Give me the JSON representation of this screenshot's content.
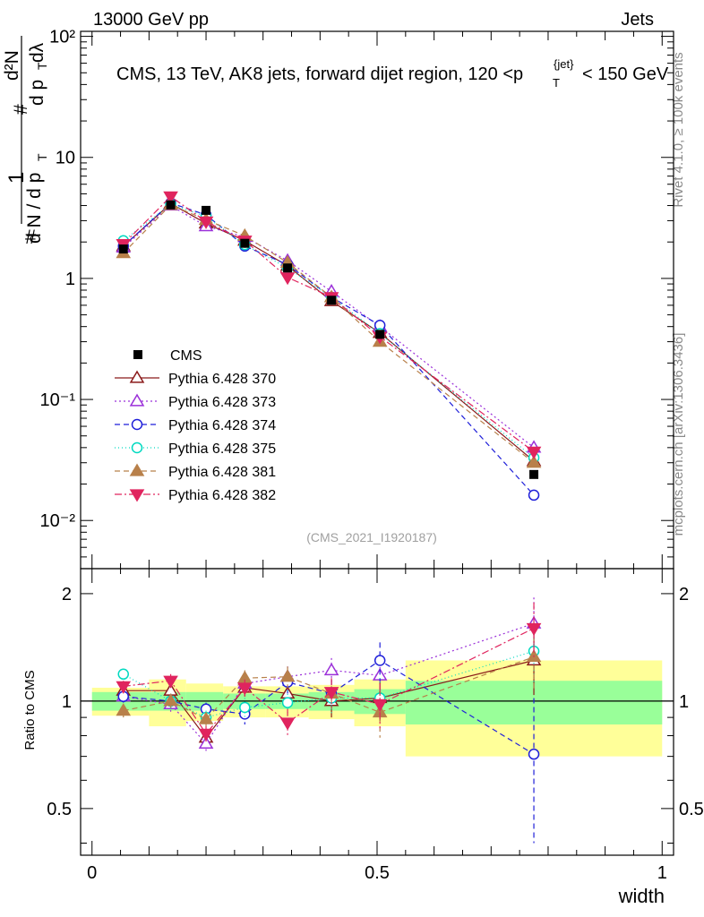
{
  "header": {
    "left": "13000 GeV pp",
    "right": "Jets"
  },
  "side_labels": {
    "rivet": "Rivet 4.1.0, ≥ 100k events",
    "mcplots": "mcplots.cern.ch [arXiv:1306.3436]"
  },
  "chart_data": {
    "type": "line",
    "title": "CMS, 13 TeV, AK8 jets, forward dijet region, 120 <p_T^{jet}< 150 GeV",
    "ylabel_main": "1/(dN/dp_T) d²N/(dp_T dλ)",
    "ylabel_ratio": "Ratio to CMS",
    "xlabel": "width",
    "analysis_id": "(CMS_2021_I1920187)",
    "xlim": [
      -0.02,
      1.02
    ],
    "ylim_main": [
      0.004,
      110
    ],
    "ylim_ratio": [
      0.37,
      2.35
    ],
    "x_ticks": [
      "0",
      "0.5",
      "1"
    ],
    "y_ticks_main": [
      "10⁻²",
      "10⁻¹",
      "1",
      "10",
      "10²"
    ],
    "y_ticks_ratio": [
      "0.5",
      "1",
      "2"
    ],
    "x": [
      0.055,
      0.138,
      0.2,
      0.268,
      0.343,
      0.42,
      0.505,
      0.775
    ],
    "bin_edges": [
      0.0,
      0.1,
      0.165,
      0.23,
      0.305,
      0.38,
      0.46,
      0.55,
      1.0
    ],
    "data": {
      "name": "CMS",
      "values": [
        1.75,
        4.05,
        3.65,
        1.95,
        1.22,
        0.66,
        0.345,
        0.024
      ],
      "band_inner": [
        0.06,
        0.06,
        0.06,
        0.05,
        0.05,
        0.06,
        0.08,
        0.14
      ],
      "band_outer": [
        0.09,
        0.15,
        0.12,
        0.1,
        0.1,
        0.11,
        0.15,
        0.3
      ]
    },
    "series": [
      {
        "name": "Pythia 6.428 370",
        "color": "#8b1a1a",
        "dash": "",
        "marker": "triangle-up-open",
        "values": [
          1.85,
          4.15,
          2.85,
          2.05,
          1.27,
          0.65,
          0.355,
          0.031
        ],
        "ratio": [
          1.07,
          1.07,
          0.79,
          1.09,
          1.05,
          1.0,
          1.02,
          1.3
        ],
        "ratio_err": [
          0.04,
          0.05,
          0.04,
          0.06,
          0.08,
          0.1,
          0.14,
          0.26
        ]
      },
      {
        "name": "Pythia 6.428 373",
        "color": "#9b30d9",
        "dash": "2,3",
        "marker": "triangle-up-open",
        "values": [
          1.8,
          4.0,
          2.7,
          2.2,
          1.4,
          0.78,
          0.4,
          0.04
        ],
        "ratio": [
          1.03,
          0.98,
          0.76,
          1.12,
          1.17,
          1.22,
          1.18,
          1.65
        ],
        "ratio_err": [
          0.04,
          0.05,
          0.04,
          0.06,
          0.08,
          0.1,
          0.14,
          0.3
        ]
      },
      {
        "name": "Pythia 6.428 374",
        "color": "#1f1fd9",
        "dash": "6,4",
        "marker": "circle-open",
        "values": [
          1.85,
          4.2,
          3.35,
          1.85,
          1.3,
          0.7,
          0.41,
          0.0162
        ],
        "ratio": [
          1.03,
          1.0,
          0.95,
          0.92,
          1.13,
          1.05,
          1.3,
          0.71
        ],
        "ratio_err": [
          0.04,
          0.05,
          0.04,
          0.06,
          0.08,
          0.1,
          0.16,
          0.31
        ]
      },
      {
        "name": "Pythia 6.428 375",
        "color": "#00d9c0",
        "dash": "1,3",
        "marker": "circle-open",
        "values": [
          2.05,
          4.1,
          3.25,
          1.9,
          1.22,
          0.7,
          0.35,
          0.033
        ],
        "ratio": [
          1.19,
          1.0,
          0.9,
          0.96,
          0.99,
          1.02,
          1.02,
          1.38
        ],
        "ratio_err": [
          0.04,
          0.05,
          0.04,
          0.06,
          0.08,
          0.1,
          0.14,
          0.27
        ]
      },
      {
        "name": "Pythia 6.428 381",
        "color": "#b8804a",
        "dash": "6,4",
        "marker": "triangle-up-filled",
        "values": [
          1.62,
          4.05,
          3.05,
          2.25,
          1.35,
          0.7,
          0.3,
          0.03
        ],
        "ratio": [
          0.94,
          1.0,
          0.89,
          1.16,
          1.17,
          1.05,
          0.93,
          1.33
        ],
        "ratio_err": [
          0.04,
          0.05,
          0.04,
          0.06,
          0.08,
          0.1,
          0.14,
          0.26
        ]
      },
      {
        "name": "Pythia 6.428 382",
        "color": "#e0245e",
        "dash": "8,3,2,3",
        "marker": "triangle-down-filled",
        "values": [
          1.92,
          4.75,
          2.95,
          2.05,
          1.02,
          0.7,
          0.33,
          0.037
        ],
        "ratio": [
          1.1,
          1.14,
          0.81,
          1.09,
          0.87,
          1.06,
          0.98,
          1.6
        ],
        "ratio_err": [
          0.04,
          0.05,
          0.04,
          0.06,
          0.08,
          0.1,
          0.14,
          0.29
        ]
      }
    ]
  }
}
